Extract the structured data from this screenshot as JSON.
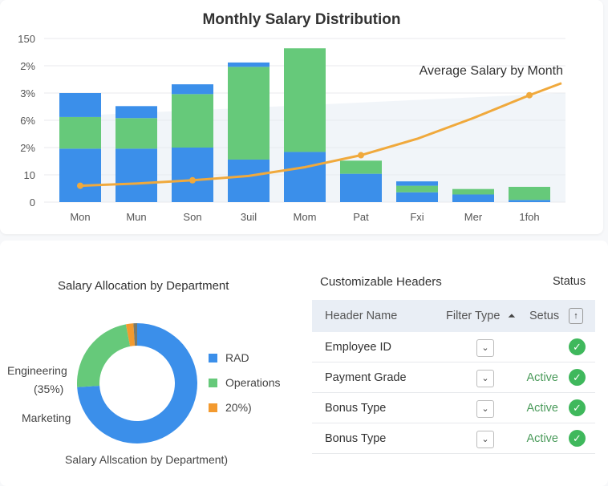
{
  "chart_data": [
    {
      "type": "bar",
      "stacked": true,
      "title": "Monthly Salary Distribution",
      "categories": [
        "Mon",
        "Mun",
        "Son",
        "3uil",
        "Mom",
        "Pat",
        "Fxi",
        "Mer",
        "1foh"
      ],
      "y_tick_labels": [
        "0",
        "10",
        "2%",
        "6%",
        "3%",
        "2%",
        "150"
      ],
      "ylim": [
        0,
        150
      ],
      "grid": true,
      "series": [
        {
          "color": "#3b8fea",
          "values": [
            49,
            49,
            50,
            39,
            46,
            26,
            9,
            7,
            2
          ]
        },
        {
          "color": "#66c97a",
          "values": [
            29,
            28,
            49,
            85,
            95,
            12,
            6,
            5,
            12
          ]
        },
        {
          "color": "#3b8fea",
          "values": [
            22,
            11,
            9,
            4,
            0,
            0,
            4,
            0,
            0
          ]
        }
      ],
      "line": {
        "name": "Average Salary by Month",
        "color": "#f0a93c",
        "values": [
          15,
          17,
          20,
          24,
          32,
          43,
          58,
          77,
          98
        ],
        "marker_indices": [
          0,
          2,
          5,
          8
        ]
      }
    },
    {
      "type": "pie",
      "donut": true,
      "title": "Salary Allocation by Department",
      "subtitle": "Salary Allscation by Department)",
      "slices": [
        {
          "value": 74,
          "color": "#3b8fea"
        },
        {
          "value": 23,
          "color": "#66c97a"
        },
        {
          "value": 2,
          "color": "#f39a2f"
        },
        {
          "value": 1,
          "color": "#7a7a6a"
        }
      ],
      "legend": [
        {
          "label": "RAD",
          "color": "#3b8fea"
        },
        {
          "label": "Operations",
          "color": "#66c97a"
        },
        {
          "label": "20%)",
          "color": "#f39a2f"
        }
      ],
      "legend_position": "right",
      "annotations": [
        "Engineering",
        "(35%)",
        "Marketing"
      ]
    }
  ],
  "table": {
    "title": "Customizable Headers",
    "status_title": "Status",
    "columns": [
      "Header Name",
      "Filter Type",
      "Setus"
    ],
    "rows": [
      {
        "name": "Employee ID",
        "status": ""
      },
      {
        "name": "Payment Grade",
        "status": "Active"
      },
      {
        "name": "Bonus Type",
        "status": "Active"
      },
      {
        "name": "Bonus Type",
        "status": "Active"
      }
    ]
  }
}
